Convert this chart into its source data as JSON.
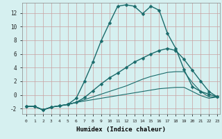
{
  "xlabel": "Humidex (Indice chaleur)",
  "bg_color": "#d6f0f0",
  "grid_color": "#b8dede",
  "line_color": "#1a6b6b",
  "x_ticks": [
    0,
    1,
    2,
    3,
    4,
    5,
    6,
    7,
    8,
    9,
    10,
    11,
    12,
    13,
    14,
    15,
    16,
    17,
    18,
    19,
    20,
    21,
    22,
    23
  ],
  "xlim": [
    -0.5,
    23.3
  ],
  "ylim": [
    -2.8,
    13.5
  ],
  "y_ticks": [
    -2,
    0,
    2,
    4,
    6,
    8,
    10,
    12
  ],
  "series": [
    {
      "x": [
        0,
        1,
        2,
        3,
        4,
        5,
        6,
        7,
        8,
        9,
        10,
        11,
        12,
        13,
        14,
        15,
        16,
        17,
        18,
        19,
        20,
        21,
        22,
        23
      ],
      "y": [
        -1.7,
        -1.7,
        -2.2,
        -1.8,
        -1.6,
        -1.4,
        -0.5,
        2.0,
        4.8,
        7.9,
        10.5,
        13.0,
        13.2,
        13.0,
        11.9,
        13.0,
        12.4,
        9.0,
        6.8,
        3.7,
        1.2,
        0.5,
        0.1,
        -0.3
      ],
      "marker": "D",
      "marker_size": 2.5,
      "lw": 1.0
    },
    {
      "x": [
        0,
        1,
        2,
        3,
        4,
        5,
        6,
        7,
        8,
        9,
        10,
        11,
        12,
        13,
        14,
        15,
        16,
        17,
        18,
        19,
        20,
        21,
        22,
        23
      ],
      "y": [
        -1.7,
        -1.7,
        -2.2,
        -1.8,
        -1.6,
        -1.4,
        -1.1,
        -0.4,
        0.6,
        1.6,
        2.5,
        3.2,
        4.0,
        4.8,
        5.4,
        6.0,
        6.5,
        6.8,
        6.5,
        5.2,
        3.6,
        2.0,
        0.5,
        -0.3
      ],
      "marker": "D",
      "marker_size": 2.5,
      "lw": 1.0
    },
    {
      "x": [
        0,
        1,
        2,
        3,
        4,
        5,
        6,
        7,
        8,
        9,
        10,
        11,
        12,
        13,
        14,
        15,
        16,
        17,
        18,
        19,
        20,
        21,
        22,
        23
      ],
      "y": [
        -1.7,
        -1.7,
        -2.2,
        -1.8,
        -1.6,
        -1.4,
        -1.1,
        -0.7,
        -0.3,
        0.1,
        0.5,
        0.9,
        1.3,
        1.8,
        2.3,
        2.7,
        3.0,
        3.3,
        3.4,
        3.4,
        1.8,
        0.5,
        -0.3,
        -0.3
      ],
      "marker": null,
      "lw": 0.8
    },
    {
      "x": [
        0,
        1,
        2,
        3,
        4,
        5,
        6,
        7,
        8,
        9,
        10,
        11,
        12,
        13,
        14,
        15,
        16,
        17,
        18,
        19,
        20,
        21,
        22,
        23
      ],
      "y": [
        -1.7,
        -1.7,
        -2.2,
        -1.8,
        -1.6,
        -1.4,
        -1.1,
        -0.9,
        -0.7,
        -0.5,
        -0.3,
        -0.1,
        0.1,
        0.3,
        0.5,
        0.7,
        0.9,
        1.0,
        1.1,
        1.1,
        0.5,
        -0.1,
        -0.5,
        -0.3
      ],
      "marker": null,
      "lw": 0.8
    }
  ]
}
